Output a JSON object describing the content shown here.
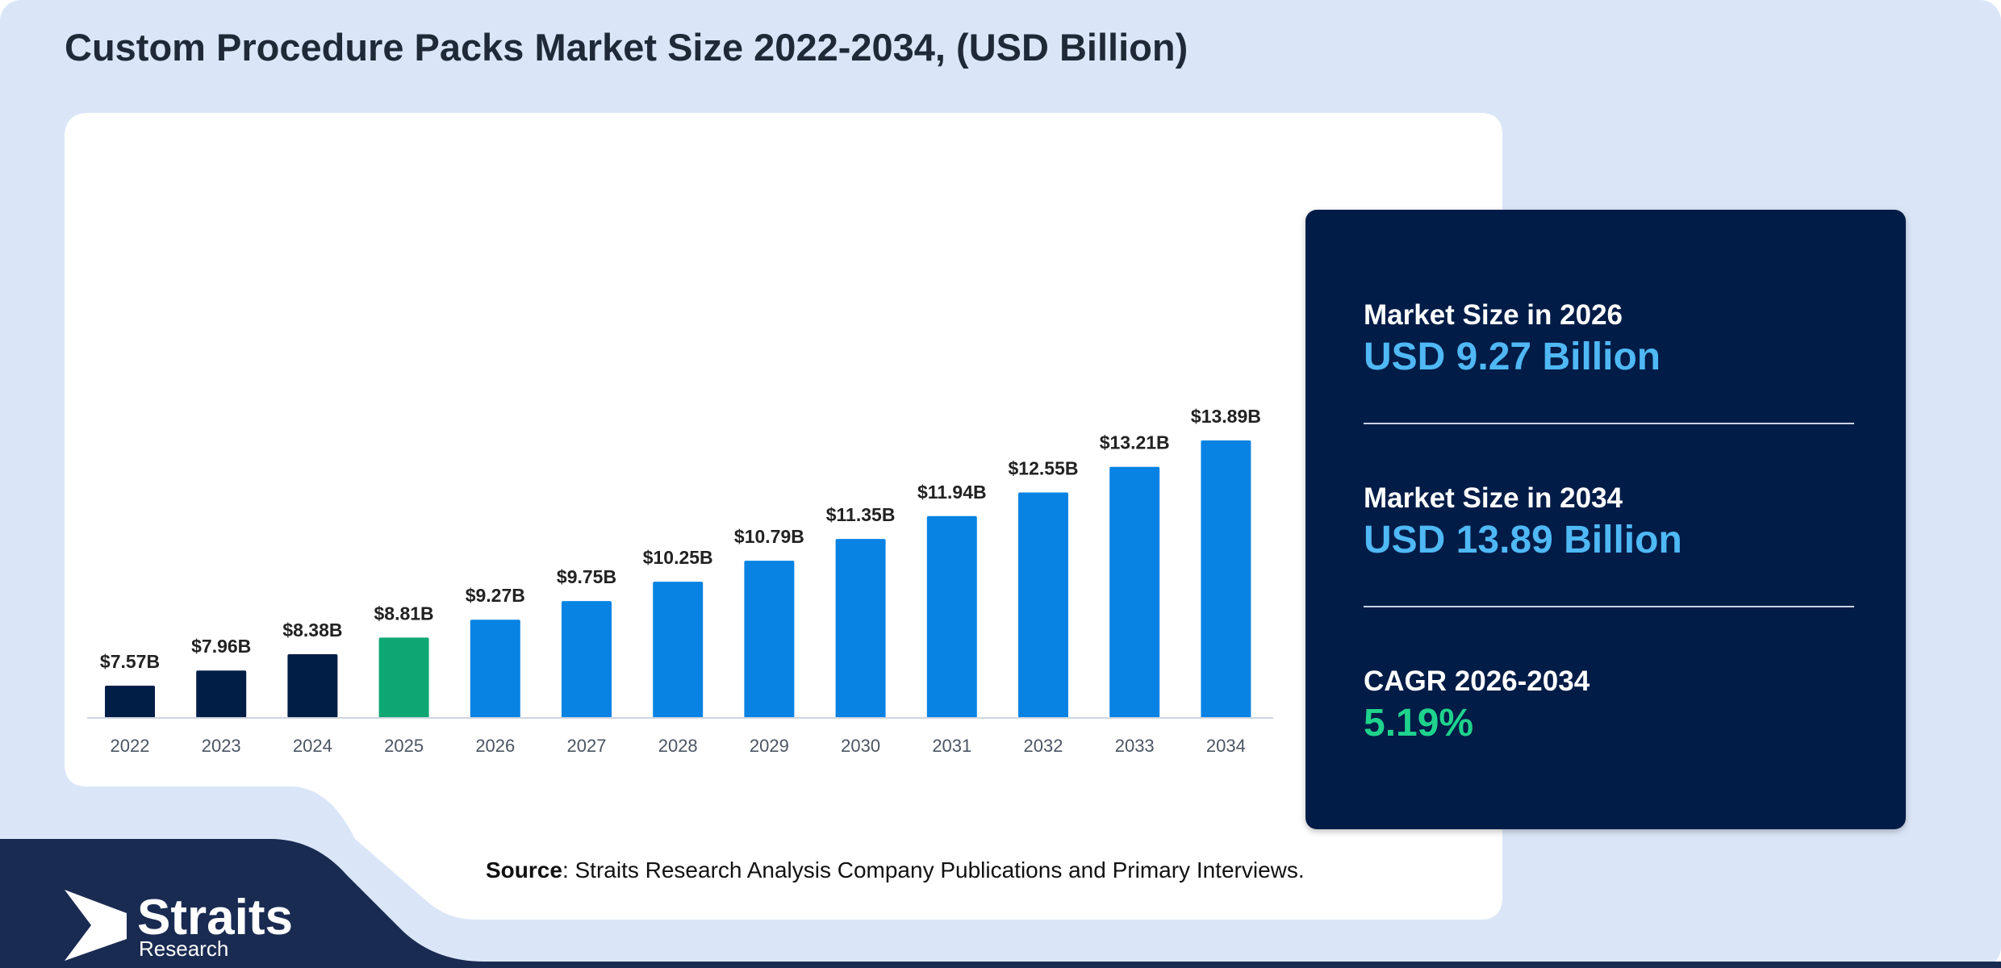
{
  "title": "Custom Procedure Packs Market Size 2022-2034, (USD Billion)",
  "colors": {
    "background": "#dae6f8",
    "panel": "#ffffff",
    "navy": "#011e47",
    "bar_historical": "#011e47",
    "bar_base_year": "#0ea773",
    "bar_forecast": "#0883e3",
    "highlight_blue": "#4fb8f5",
    "highlight_green": "#1fd38c"
  },
  "chart_data": {
    "type": "bar",
    "categories": [
      "2022",
      "2023",
      "2024",
      "2025",
      "2026",
      "2027",
      "2028",
      "2029",
      "2030",
      "2031",
      "2032",
      "2033",
      "2034"
    ],
    "values": [
      7.57,
      7.96,
      8.38,
      8.81,
      9.27,
      9.75,
      10.25,
      10.79,
      11.35,
      11.94,
      12.55,
      13.21,
      13.89
    ],
    "data_labels": [
      "$7.57B",
      "$7.96B",
      "$8.38B",
      "$8.81B",
      "$9.27B",
      "$9.75B",
      "$10.25B",
      "$10.79B",
      "$11.35B",
      "$11.94B",
      "$12.55B",
      "$13.21B",
      "$13.89B"
    ],
    "bar_groups": [
      "historical",
      "historical",
      "historical",
      "base_year",
      "forecast",
      "forecast",
      "forecast",
      "forecast",
      "forecast",
      "forecast",
      "forecast",
      "forecast",
      "forecast"
    ],
    "grid": false,
    "legend": "none"
  },
  "stats": [
    {
      "label": "Market Size in 2026",
      "value": "USD 9.27 Billion",
      "accent": "blue"
    },
    {
      "label": "Market Size in 2034",
      "value": "USD 13.89 Billion",
      "accent": "blue"
    },
    {
      "label": "CAGR 2026-2034",
      "value": "5.19%",
      "accent": "green"
    }
  ],
  "source": {
    "label": "Source",
    "text": ": Straits Research Analysis Company Publications and Primary Interviews."
  },
  "logo": {
    "name": "Straits",
    "sub": "Research",
    "icon": "straits-arrow-logo-icon"
  }
}
